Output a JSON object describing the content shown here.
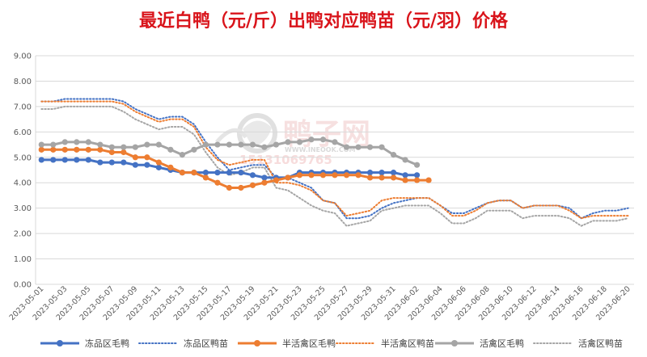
{
  "chart_data": {
    "type": "line",
    "title": "最近白鸭（元/斤）出鸭对应鸭苗（元/羽）价格",
    "watermark": {
      "brand": "鸭子网",
      "url": "WWW.INEOOK.COM",
      "phone": "15131069765"
    },
    "ylim": [
      0,
      9
    ],
    "yticks": [
      "0.00",
      "1.00",
      "2.00",
      "3.00",
      "4.00",
      "5.00",
      "6.00",
      "7.00",
      "8.00",
      "9.00"
    ],
    "grid": true,
    "legend_position": "bottom",
    "x": [
      "2023-05-01",
      "2023-05-02",
      "2023-05-03",
      "2023-05-04",
      "2023-05-05",
      "2023-05-06",
      "2023-05-07",
      "2023-05-08",
      "2023-05-09",
      "2023-05-10",
      "2023-05-11",
      "2023-05-12",
      "2023-05-13",
      "2023-05-14",
      "2023-05-15",
      "2023-05-16",
      "2023-05-17",
      "2023-05-18",
      "2023-05-19",
      "2023-05-20",
      "2023-05-21",
      "2023-05-22",
      "2023-05-23",
      "2023-05-24",
      "2023-05-25",
      "2023-05-26",
      "2023-05-27",
      "2023-05-28",
      "2023-05-29",
      "2023-05-30",
      "2023-05-31",
      "2023-06-01",
      "2023-06-02",
      "2023-06-03",
      "2023-06-04",
      "2023-06-05",
      "2023-06-06",
      "2023-06-07",
      "2023-06-08",
      "2023-06-09",
      "2023-06-10",
      "2023-06-11",
      "2023-06-12",
      "2023-06-13",
      "2023-06-14",
      "2023-06-15",
      "2023-06-16",
      "2023-06-17",
      "2023-06-18",
      "2023-06-19",
      "2023-06-20"
    ],
    "x_tick_labels": [
      "2023-05-01",
      "2023-05-03",
      "2023-05-05",
      "2023-05-07",
      "2023-05-09",
      "2023-05-11",
      "2023-05-13",
      "2023-05-15",
      "2023-05-17",
      "2023-05-19",
      "2023-05-21",
      "2023-05-23",
      "2023-05-25",
      "2023-05-27",
      "2023-05-29",
      "2023-05-31",
      "2023-06-02",
      "2023-06-04",
      "2023-06-06",
      "2023-06-08",
      "2023-06-10",
      "2023-06-12",
      "2023-06-14",
      "2023-06-16",
      "2023-06-18",
      "2023-06-20"
    ],
    "series": [
      {
        "name": "冻品区毛鸭",
        "color": "#4472c4",
        "style": "solid",
        "markers": true,
        "values": [
          4.9,
          4.9,
          4.9,
          4.9,
          4.9,
          4.8,
          4.8,
          4.8,
          4.7,
          4.7,
          4.6,
          4.5,
          4.4,
          4.4,
          4.4,
          4.4,
          4.4,
          4.4,
          4.3,
          4.2,
          4.2,
          4.2,
          4.4,
          4.4,
          4.4,
          4.4,
          4.4,
          4.4,
          4.4,
          4.4,
          4.4,
          4.3,
          4.3,
          null,
          null,
          null,
          null,
          null,
          null,
          null,
          null,
          null,
          null,
          null,
          null,
          null,
          null,
          null,
          null,
          null,
          null
        ]
      },
      {
        "name": "冻品区鸭苗",
        "color": "#4472c4",
        "style": "dotted",
        "markers": false,
        "values": [
          7.2,
          7.2,
          7.3,
          7.3,
          7.3,
          7.3,
          7.3,
          7.2,
          6.9,
          6.7,
          6.5,
          6.6,
          6.6,
          6.3,
          5.6,
          5.0,
          4.5,
          4.6,
          4.7,
          4.7,
          4.2,
          4.2,
          4.0,
          3.8,
          3.3,
          3.2,
          2.6,
          2.6,
          2.7,
          3.0,
          3.2,
          3.3,
          3.4,
          3.4,
          3.1,
          2.8,
          2.8,
          3.0,
          3.2,
          3.3,
          3.3,
          3.0,
          3.1,
          3.1,
          3.1,
          3.0,
          2.6,
          2.8,
          2.9,
          2.9,
          3.0
        ]
      },
      {
        "name": "半活禽区毛鸭",
        "color": "#ed7d31",
        "style": "solid",
        "markers": true,
        "values": [
          5.3,
          5.3,
          5.3,
          5.3,
          5.3,
          5.3,
          5.2,
          5.2,
          5.0,
          5.0,
          4.8,
          4.6,
          4.4,
          4.4,
          4.2,
          4.0,
          3.8,
          3.8,
          3.9,
          4.0,
          4.1,
          4.2,
          4.3,
          4.3,
          4.3,
          4.3,
          4.3,
          4.3,
          4.2,
          4.2,
          4.2,
          4.1,
          4.1,
          4.1,
          null,
          null,
          null,
          null,
          null,
          null,
          null,
          null,
          null,
          null,
          null,
          null,
          null,
          null,
          null,
          null,
          null
        ]
      },
      {
        "name": "半活禽区鸭苗",
        "color": "#ed7d31",
        "style": "dotted",
        "markers": false,
        "values": [
          7.2,
          7.2,
          7.2,
          7.2,
          7.2,
          7.2,
          7.2,
          7.1,
          6.8,
          6.6,
          6.4,
          6.5,
          6.5,
          6.2,
          5.4,
          4.9,
          4.7,
          4.8,
          4.9,
          4.9,
          4.0,
          4.0,
          3.9,
          3.7,
          3.3,
          3.2,
          2.7,
          2.8,
          2.9,
          3.3,
          3.4,
          3.4,
          3.4,
          3.4,
          3.1,
          2.7,
          2.7,
          2.9,
          3.2,
          3.3,
          3.3,
          3.0,
          3.1,
          3.1,
          3.1,
          2.9,
          2.6,
          2.7,
          2.7,
          2.7,
          2.7
        ]
      },
      {
        "name": "活禽区毛鸭",
        "color": "#a5a5a5",
        "style": "solid",
        "markers": true,
        "values": [
          5.5,
          5.5,
          5.6,
          5.6,
          5.6,
          5.5,
          5.4,
          5.4,
          5.4,
          5.5,
          5.5,
          5.3,
          5.1,
          5.3,
          5.5,
          5.5,
          5.5,
          5.5,
          5.5,
          5.4,
          5.5,
          5.6,
          5.6,
          5.7,
          5.7,
          5.6,
          5.4,
          5.4,
          5.4,
          5.4,
          5.1,
          4.9,
          4.7,
          null,
          null,
          null,
          null,
          null,
          null,
          null,
          null,
          null,
          null,
          null,
          null,
          null,
          null,
          null,
          null,
          null,
          null
        ]
      },
      {
        "name": "活禽区鸭苗",
        "color": "#a5a5a5",
        "style": "dotted",
        "markers": false,
        "values": [
          6.9,
          6.9,
          7.0,
          7.0,
          7.0,
          7.0,
          7.0,
          6.8,
          6.5,
          6.3,
          6.1,
          6.2,
          6.2,
          5.9,
          5.2,
          4.6,
          4.3,
          4.4,
          4.6,
          4.6,
          3.8,
          3.7,
          3.4,
          3.1,
          2.9,
          2.8,
          2.3,
          2.4,
          2.5,
          2.9,
          3.0,
          3.1,
          3.1,
          3.1,
          2.8,
          2.4,
          2.4,
          2.6,
          2.9,
          2.9,
          2.9,
          2.6,
          2.7,
          2.7,
          2.7,
          2.6,
          2.3,
          2.5,
          2.5,
          2.5,
          2.6
        ]
      }
    ]
  }
}
